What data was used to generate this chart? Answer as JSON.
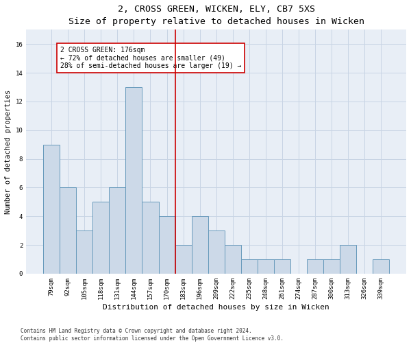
{
  "title1": "2, CROSS GREEN, WICKEN, ELY, CB7 5XS",
  "title2": "Size of property relative to detached houses in Wicken",
  "xlabel": "Distribution of detached houses by size in Wicken",
  "ylabel": "Number of detached properties",
  "bins": [
    "79sqm",
    "92sqm",
    "105sqm",
    "118sqm",
    "131sqm",
    "144sqm",
    "157sqm",
    "170sqm",
    "183sqm",
    "196sqm",
    "209sqm",
    "222sqm",
    "235sqm",
    "248sqm",
    "261sqm",
    "274sqm",
    "287sqm",
    "300sqm",
    "313sqm",
    "326sqm",
    "339sqm"
  ],
  "values": [
    9,
    6,
    3,
    5,
    6,
    13,
    5,
    4,
    2,
    4,
    3,
    2,
    1,
    1,
    1,
    0,
    1,
    1,
    2,
    0,
    1
  ],
  "bar_color": "#ccd9e8",
  "bar_edge_color": "#6699bb",
  "vline_x": 7.5,
  "vline_color": "#cc0000",
  "annotation_text": "2 CROSS GREEN: 176sqm\n← 72% of detached houses are smaller (49)\n28% of semi-detached houses are larger (19) →",
  "annotation_box_color": "white",
  "annotation_box_edge_color": "#cc0000",
  "ylim": [
    0,
    17
  ],
  "yticks": [
    0,
    2,
    4,
    6,
    8,
    10,
    12,
    14,
    16
  ],
  "footnote": "Contains HM Land Registry data © Crown copyright and database right 2024.\nContains public sector information licensed under the Open Government Licence v3.0.",
  "grid_color": "#c8d4e4",
  "background_color": "#e8eef6",
  "fig_width": 6.0,
  "fig_height": 5.0,
  "title1_fontsize": 9.5,
  "title2_fontsize": 8.5,
  "xlabel_fontsize": 8,
  "ylabel_fontsize": 7.5,
  "tick_fontsize": 6.5,
  "annot_fontsize": 7,
  "footnote_fontsize": 5.5
}
